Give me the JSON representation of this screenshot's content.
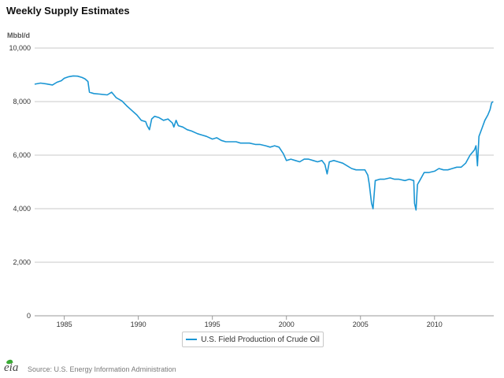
{
  "title": "Weekly Supply Estimates",
  "footer": {
    "logo_text": "eia",
    "source": "Source: U.S. Energy Information Administration"
  },
  "chart_data": {
    "type": "line",
    "title": "Weekly Supply Estimates",
    "ylabel": "Mbbl/d",
    "xlabel": "",
    "ylim": [
      0,
      10000
    ],
    "xlim": [
      1983.0,
      2014.0
    ],
    "y_ticks": [
      0,
      2000,
      4000,
      6000,
      8000,
      10000
    ],
    "y_tick_labels": [
      "0",
      "2,000",
      "4,000",
      "6,000",
      "8,000",
      "10,000"
    ],
    "x_ticks": [
      1985,
      1990,
      1995,
      2000,
      2005,
      2010
    ],
    "x_tick_labels": [
      "1985",
      "1990",
      "1995",
      "2000",
      "2005",
      "2010"
    ],
    "grid": true,
    "legend_position": "bottom-center",
    "series": [
      {
        "name": "U.S. Field Production of Crude Oil",
        "color": "#1a96d4",
        "x": [
          1983.0,
          1983.4,
          1983.8,
          1984.2,
          1984.5,
          1984.8,
          1985.0,
          1985.3,
          1985.6,
          1985.9,
          1986.2,
          1986.4,
          1986.6,
          1986.7,
          1987.0,
          1987.4,
          1987.9,
          1988.2,
          1988.5,
          1988.9,
          1989.2,
          1989.5,
          1989.9,
          1990.2,
          1990.5,
          1990.6,
          1990.75,
          1990.9,
          1991.1,
          1991.4,
          1991.7,
          1992.0,
          1992.3,
          1992.4,
          1992.55,
          1992.7,
          1993.0,
          1993.3,
          1993.6,
          1994.0,
          1994.3,
          1994.6,
          1995.0,
          1995.3,
          1995.6,
          1995.9,
          1996.3,
          1996.6,
          1996.9,
          1997.2,
          1997.5,
          1997.9,
          1998.2,
          1998.6,
          1998.9,
          1999.2,
          1999.5,
          1999.8,
          2000.0,
          2000.3,
          2000.6,
          2000.9,
          2001.2,
          2001.5,
          2001.8,
          2002.1,
          2002.4,
          2002.6,
          2002.75,
          2002.9,
          2003.2,
          2003.5,
          2003.8,
          2004.1,
          2004.4,
          2004.7,
          2005.0,
          2005.3,
          2005.5,
          2005.6,
          2005.75,
          2005.85,
          2006.0,
          2006.3,
          2006.6,
          2007.0,
          2007.3,
          2007.6,
          2008.0,
          2008.3,
          2008.6,
          2008.65,
          2008.75,
          2008.85,
          2009.0,
          2009.3,
          2009.6,
          2010.0,
          2010.3,
          2010.6,
          2010.9,
          2011.2,
          2011.5,
          2011.8,
          2012.1,
          2012.4,
          2012.7,
          2012.8,
          2012.9,
          2013.0,
          2013.2,
          2013.4,
          2013.6,
          2013.75,
          2013.85,
          2013.95
        ],
        "values": [
          8650,
          8690,
          8660,
          8620,
          8720,
          8780,
          8870,
          8930,
          8960,
          8950,
          8900,
          8850,
          8750,
          8350,
          8300,
          8280,
          8250,
          8350,
          8150,
          8020,
          7850,
          7700,
          7500,
          7300,
          7250,
          7100,
          6950,
          7350,
          7450,
          7400,
          7300,
          7350,
          7200,
          7050,
          7300,
          7100,
          7050,
          6950,
          6900,
          6800,
          6750,
          6700,
          6600,
          6650,
          6550,
          6500,
          6500,
          6500,
          6450,
          6450,
          6450,
          6400,
          6400,
          6350,
          6300,
          6350,
          6300,
          6050,
          5800,
          5850,
          5800,
          5750,
          5850,
          5850,
          5800,
          5750,
          5800,
          5650,
          5300,
          5750,
          5800,
          5750,
          5700,
          5600,
          5500,
          5450,
          5450,
          5450,
          5250,
          4900,
          4200,
          4000,
          5050,
          5100,
          5100,
          5150,
          5100,
          5100,
          5050,
          5100,
          5050,
          4200,
          3950,
          4900,
          5050,
          5350,
          5350,
          5400,
          5500,
          5450,
          5450,
          5500,
          5550,
          5550,
          5700,
          6000,
          6200,
          6350,
          5600,
          6700,
          7000,
          7300,
          7500,
          7700,
          7950,
          8000
        ]
      }
    ]
  }
}
